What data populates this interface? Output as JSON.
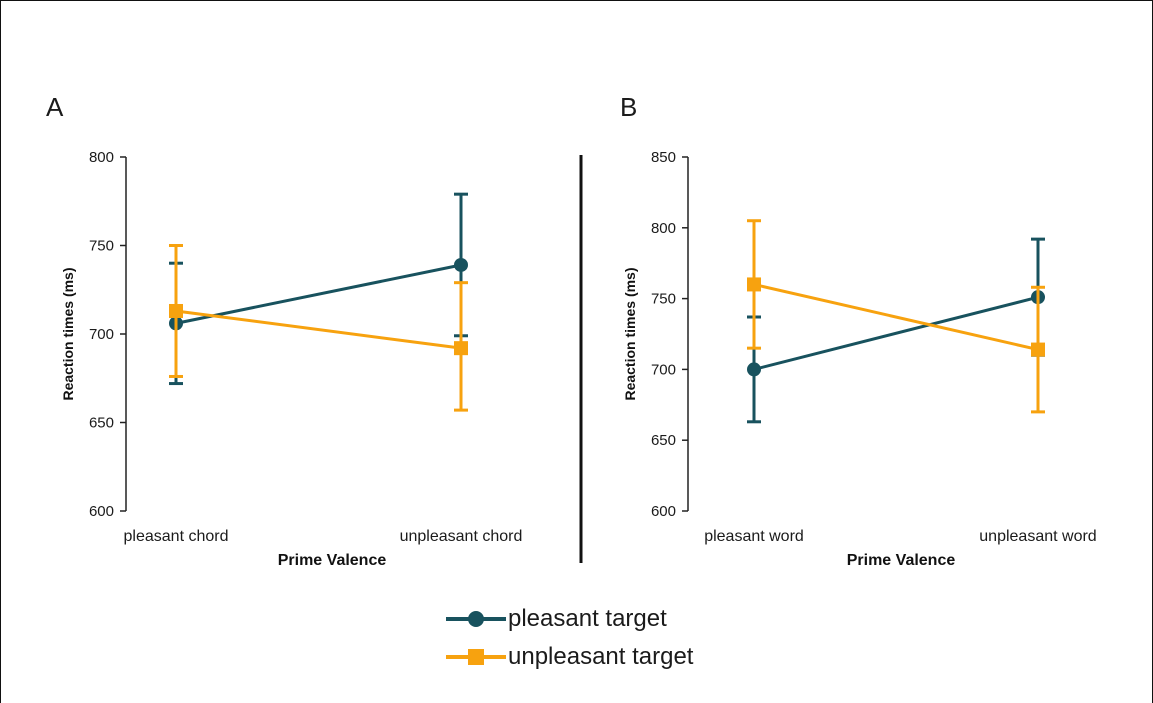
{
  "colors": {
    "pleasant": "#18525e",
    "unpleasant": "#f7a20f",
    "axis": "#222222"
  },
  "chart_data": [
    {
      "type": "line",
      "panel_label": "A",
      "categories": [
        "pleasant chord",
        "unpleasant chord"
      ],
      "xlabel": "Prime Valence",
      "ylabel": "Reaction times (ms)",
      "ylim": [
        600,
        800
      ],
      "yticks": [
        600,
        650,
        700,
        750,
        800
      ],
      "series": [
        {
          "name": "pleasant target",
          "values": [
            706,
            739
          ],
          "err_low": [
            672,
            699
          ],
          "err_high": [
            740,
            779
          ]
        },
        {
          "name": "unpleasant target",
          "values": [
            713,
            692
          ],
          "err_low": [
            676,
            657
          ],
          "err_high": [
            750,
            729
          ]
        }
      ]
    },
    {
      "type": "line",
      "panel_label": "B",
      "categories": [
        "pleasant word",
        "unpleasant word"
      ],
      "xlabel": "Prime Valence",
      "ylabel": "Reaction times (ms)",
      "ylim": [
        600,
        850
      ],
      "yticks": [
        600,
        650,
        700,
        750,
        800,
        850
      ],
      "series": [
        {
          "name": "pleasant target",
          "values": [
            700,
            751
          ],
          "err_low": [
            663,
            710
          ],
          "err_high": [
            737,
            792
          ]
        },
        {
          "name": "unpleasant target",
          "values": [
            760,
            714
          ],
          "err_low": [
            715,
            670
          ],
          "err_high": [
            805,
            758
          ]
        }
      ]
    }
  ],
  "legend": [
    {
      "label": "pleasant target",
      "marker": "circle"
    },
    {
      "label": "unpleasant target",
      "marker": "square"
    }
  ]
}
